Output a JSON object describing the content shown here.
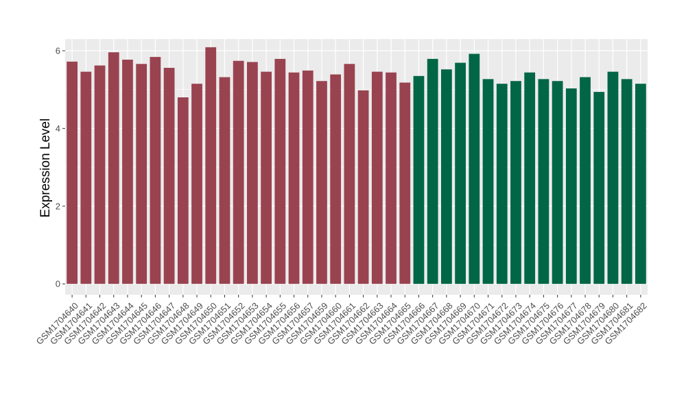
{
  "chart_data": {
    "type": "bar",
    "title": "",
    "xlabel": "",
    "ylabel": "Expression Level",
    "ylim": [
      -0.28,
      6.3
    ],
    "yticks": [
      0,
      2,
      4,
      6
    ],
    "grid": true,
    "legend": "none",
    "panel_color": "#ebebeb",
    "grid_color": "#ffffff",
    "categories": [
      "GSM1704640",
      "GSM1704641",
      "GSM1704642",
      "GSM1704643",
      "GSM1704644",
      "GSM1704645",
      "GSM1704646",
      "GSM1704647",
      "GSM1704648",
      "GSM1704649",
      "GSM1704650",
      "GSM1704651",
      "GSM1704652",
      "GSM1704653",
      "GSM1704654",
      "GSM1704655",
      "GSM1704656",
      "GSM1704657",
      "GSM1704659",
      "GSM1704660",
      "GSM1704661",
      "GSM1704662",
      "GSM1704663",
      "GSM1704664",
      "GSM1704665",
      "GSM1704666",
      "GSM1704667",
      "GSM1704668",
      "GSM1704669",
      "GSM1704670",
      "GSM1704671",
      "GSM1704672",
      "GSM1704673",
      "GSM1704674",
      "GSM1704675",
      "GSM1704676",
      "GSM1704677",
      "GSM1704678",
      "GSM1704679",
      "GSM1704680",
      "GSM1704681",
      "GSM1704682"
    ],
    "values": [
      5.72,
      5.46,
      5.62,
      5.96,
      5.77,
      5.66,
      5.84,
      5.56,
      4.8,
      5.15,
      6.09,
      5.32,
      5.74,
      5.71,
      5.46,
      5.79,
      5.44,
      5.49,
      5.22,
      5.39,
      5.66,
      4.98,
      5.46,
      5.44,
      5.18,
      5.35,
      5.79,
      5.52,
      5.69,
      5.92,
      5.27,
      5.15,
      5.22,
      5.44,
      5.27,
      5.22,
      5.03,
      5.32,
      4.94,
      5.46,
      5.27,
      5.15
    ],
    "bar_colors": [
      "#9a4350",
      "#9a4350",
      "#9a4350",
      "#9a4350",
      "#9a4350",
      "#9a4350",
      "#9a4350",
      "#9a4350",
      "#9a4350",
      "#9a4350",
      "#9a4350",
      "#9a4350",
      "#9a4350",
      "#9a4350",
      "#9a4350",
      "#9a4350",
      "#9a4350",
      "#9a4350",
      "#9a4350",
      "#9a4350",
      "#9a4350",
      "#9a4350",
      "#9a4350",
      "#9a4350",
      "#9a4350",
      "#006646",
      "#006646",
      "#006646",
      "#006646",
      "#006646",
      "#006646",
      "#006646",
      "#006646",
      "#006646",
      "#006646",
      "#006646",
      "#006646",
      "#006646",
      "#006646",
      "#006646",
      "#006646",
      "#006646"
    ]
  }
}
